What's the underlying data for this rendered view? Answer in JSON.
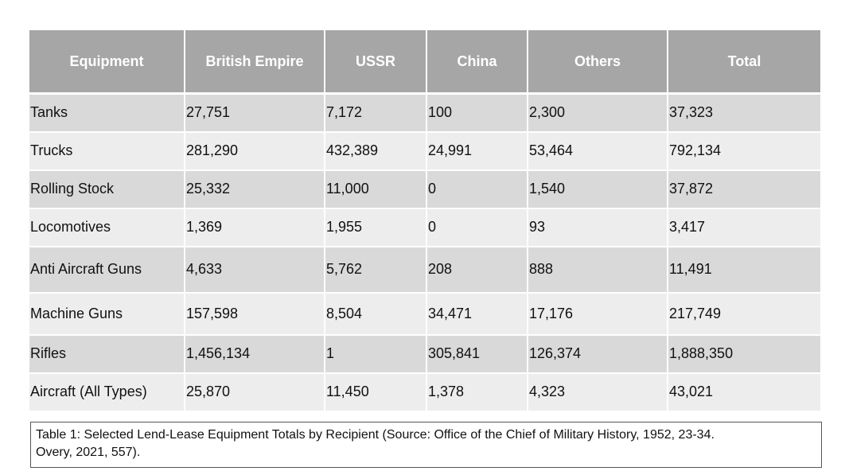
{
  "table": {
    "headers": [
      "Equipment",
      "British Empire",
      "USSR",
      "China",
      "Others",
      "Total"
    ],
    "rows": [
      [
        "Tanks",
        "27,751",
        "7,172",
        "100",
        "2,300",
        "37,323"
      ],
      [
        "Trucks",
        "281,290",
        "432,389",
        "24,991",
        "53,464",
        "792,134"
      ],
      [
        "Rolling Stock",
        "25,332",
        "11,000",
        "0",
        "1,540",
        "37,872"
      ],
      [
        "Locomotives",
        "1,369",
        "1,955",
        "0",
        "93",
        "3,417"
      ],
      [
        "Anti Aircraft Guns",
        "4,633",
        "5,762",
        "208",
        "888",
        "11,491"
      ],
      [
        "Machine Guns",
        "157,598",
        "8,504",
        "34,471",
        "17,176",
        "217,749"
      ],
      [
        "Rifles",
        "1,456,134",
        "1",
        "305,841",
        "126,374",
        "1,888,350"
      ],
      [
        "Aircraft (All Types)",
        "25,870",
        "11,450",
        "1,378",
        "4,323",
        "43,021"
      ]
    ]
  },
  "caption": {
    "line1": "Table 1: Selected Lend-Lease Equipment Totals by Recipient (Source: Office of the Chief of Military History, 1952, 23-34.",
    "line2": "Overy, 2021, 557)."
  }
}
